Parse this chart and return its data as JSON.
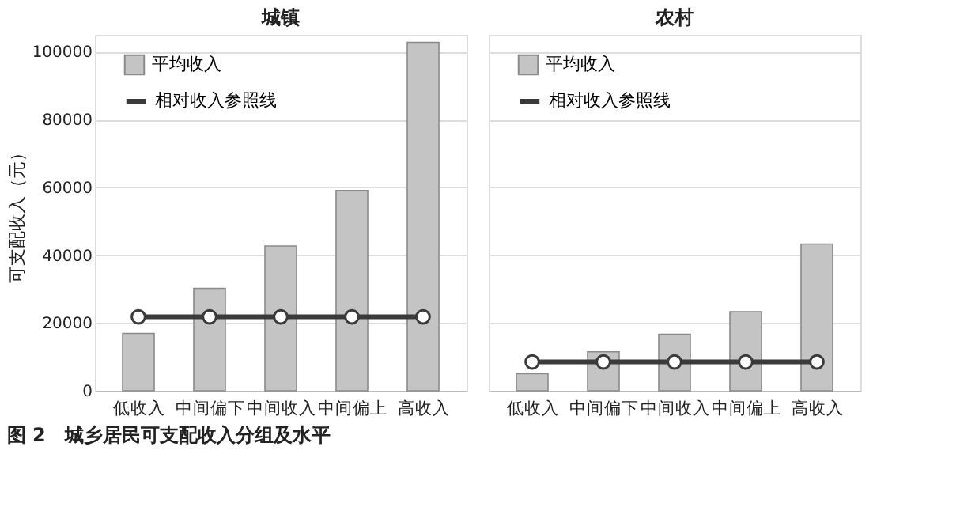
{
  "chart_data": [
    {
      "type": "bar",
      "title": "城镇",
      "ylabel": "可支配收入（元）",
      "categories": [
        "低收入",
        "中间偏下",
        "中间收入",
        "中间偏上",
        "高收入"
      ],
      "series": [
        {
          "name": "平均收入",
          "color": "#c4c4c4",
          "values": [
            16900,
            30200,
            42700,
            59100,
            102800
          ]
        },
        {
          "name": "相对收入参照线",
          "type": "line",
          "color": "#3a3a3a",
          "marker": "circle",
          "values": [
            21800,
            21800,
            21800,
            21800,
            21800
          ]
        }
      ],
      "ylim": [
        0,
        105000
      ],
      "yticks": [
        0,
        20000,
        40000,
        60000,
        80000,
        100000
      ],
      "grid": "y",
      "legend": "top left",
      "annotations": [
        "图 2　城乡居民可支配收入分组及水平"
      ]
    },
    {
      "type": "bar",
      "title": "农村",
      "categories": [
        "低收入",
        "中间偏下",
        "中间收入",
        "中间偏上",
        "高收入"
      ],
      "series": [
        {
          "name": "平均收入",
          "color": "#c4c4c4",
          "values": [
            5000,
            11500,
            16700,
            23300,
            43300
          ]
        },
        {
          "name": "相对收入参照线",
          "type": "line",
          "color": "#3a3a3a",
          "marker": "circle",
          "values": [
            8500,
            8500,
            8500,
            8500,
            8500
          ]
        }
      ],
      "ylim": [
        0,
        105000
      ],
      "yticks": [
        0,
        20000,
        40000,
        60000,
        80000,
        100000
      ],
      "grid": "y",
      "legend": "top left",
      "tick_labels": "x"
    }
  ]
}
